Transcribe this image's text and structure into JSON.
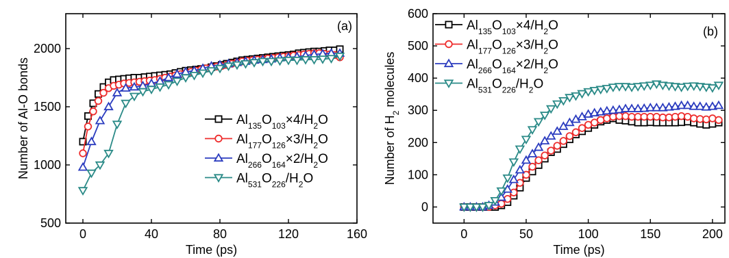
{
  "chart_data": [
    {
      "type": "line",
      "panel_label": "(a)",
      "xlabel": "Time (ps)",
      "ylabel": "Number of Al-O bonds",
      "xlim": [
        -10,
        160
      ],
      "ylim": [
        500,
        2300
      ],
      "xticks": [
        0,
        40,
        80,
        120,
        160
      ],
      "yticks": [
        500,
        1000,
        1500,
        2000
      ],
      "legend_position": "center-right",
      "grid": false,
      "series": [
        {
          "name": "Al135O103×4/H2O",
          "legend": {
            "parts": [
              [
                "Al",
                ""
              ],
              [
                "135",
                "sub"
              ],
              [
                "O",
                ""
              ],
              [
                "103",
                "sub"
              ],
              [
                "×4/H",
                ""
              ],
              [
                "2",
                "sub"
              ],
              [
                "O",
                ""
              ]
            ]
          },
          "color": "#000000",
          "marker": "square",
          "x": [
            0,
            3,
            6,
            9,
            12,
            15,
            18,
            21,
            24,
            27,
            30,
            33,
            36,
            39,
            42,
            45,
            48,
            51,
            54,
            57,
            60,
            63,
            66,
            69,
            72,
            75,
            78,
            81,
            84,
            87,
            90,
            93,
            96,
            99,
            102,
            105,
            108,
            111,
            114,
            117,
            120,
            123,
            126,
            129,
            132,
            135,
            138,
            141,
            144,
            147,
            150
          ],
          "y": [
            1200,
            1420,
            1530,
            1610,
            1670,
            1710,
            1730,
            1735,
            1740,
            1745,
            1750,
            1750,
            1755,
            1760,
            1765,
            1770,
            1775,
            1780,
            1790,
            1800,
            1810,
            1815,
            1820,
            1825,
            1830,
            1840,
            1850,
            1860,
            1870,
            1880,
            1890,
            1900,
            1905,
            1910,
            1915,
            1920,
            1925,
            1930,
            1935,
            1940,
            1945,
            1950,
            1960,
            1965,
            1970,
            1975,
            1975,
            1980,
            1985,
            1985,
            1995
          ]
        },
        {
          "name": "Al177O126×3/H2O",
          "legend": {
            "parts": [
              [
                "Al",
                ""
              ],
              [
                "177",
                "sub"
              ],
              [
                "O",
                ""
              ],
              [
                "126",
                "sub"
              ],
              [
                "×3/H",
                ""
              ],
              [
                "2",
                "sub"
              ],
              [
                "O",
                ""
              ]
            ]
          },
          "color": "#ee2c2c",
          "marker": "circle",
          "x": [
            0,
            3,
            6,
            9,
            12,
            15,
            18,
            21,
            24,
            27,
            30,
            33,
            36,
            39,
            42,
            45,
            48,
            51,
            54,
            57,
            60,
            63,
            66,
            69,
            72,
            75,
            78,
            81,
            84,
            87,
            90,
            93,
            96,
            99,
            102,
            105,
            108,
            111,
            114,
            117,
            120,
            123,
            126,
            129,
            132,
            135,
            138,
            141,
            144,
            147,
            150
          ],
          "y": [
            1100,
            1330,
            1460,
            1550,
            1620,
            1660,
            1680,
            1690,
            1700,
            1705,
            1710,
            1715,
            1720,
            1725,
            1730,
            1740,
            1750,
            1760,
            1770,
            1780,
            1790,
            1800,
            1810,
            1820,
            1830,
            1840,
            1845,
            1850,
            1860,
            1870,
            1880,
            1890,
            1895,
            1900,
            1905,
            1910,
            1915,
            1920,
            1925,
            1930,
            1935,
            1940,
            1945,
            1950,
            1955,
            1960,
            1960,
            1955,
            1950,
            1945,
            1925
          ]
        },
        {
          "name": "Al266O164×2/H2O",
          "legend": {
            "parts": [
              [
                "Al",
                ""
              ],
              [
                "266",
                "sub"
              ],
              [
                "O",
                ""
              ],
              [
                "164",
                "sub"
              ],
              [
                "×2/H",
                ""
              ],
              [
                "2",
                "sub"
              ],
              [
                "O",
                ""
              ]
            ]
          },
          "color": "#2b3cbf",
          "marker": "triangle-up",
          "x": [
            0,
            5,
            10,
            15,
            20,
            25,
            30,
            35,
            40,
            45,
            50,
            55,
            60,
            65,
            70,
            75,
            80,
            85,
            90,
            95,
            100,
            105,
            110,
            115,
            120,
            125,
            130,
            135,
            140,
            145,
            150
          ],
          "y": [
            980,
            1200,
            1380,
            1500,
            1620,
            1660,
            1670,
            1680,
            1700,
            1720,
            1750,
            1780,
            1800,
            1810,
            1830,
            1850,
            1860,
            1870,
            1880,
            1890,
            1900,
            1905,
            1910,
            1920,
            1925,
            1930,
            1940,
            1950,
            1955,
            1960,
            1960
          ]
        },
        {
          "name": "Al531O226/H2O",
          "legend": {
            "parts": [
              [
                "Al",
                ""
              ],
              [
                "531",
                "sub"
              ],
              [
                "O",
                ""
              ],
              [
                "226",
                "sub"
              ],
              [
                "/H",
                ""
              ],
              [
                "2",
                "sub"
              ],
              [
                "O",
                ""
              ]
            ]
          },
          "color": "#2a8a87",
          "marker": "triangle-down",
          "x": [
            0,
            5,
            10,
            15,
            20,
            25,
            30,
            35,
            40,
            45,
            50,
            55,
            60,
            65,
            70,
            75,
            80,
            85,
            90,
            95,
            100,
            105,
            110,
            115,
            120,
            125,
            130,
            135,
            140,
            145,
            150
          ],
          "y": [
            780,
            930,
            1000,
            1100,
            1350,
            1530,
            1590,
            1630,
            1650,
            1670,
            1690,
            1720,
            1750,
            1770,
            1790,
            1810,
            1830,
            1850,
            1860,
            1870,
            1880,
            1890,
            1890,
            1895,
            1900,
            1900,
            1905,
            1905,
            1910,
            1915,
            1935
          ]
        }
      ]
    },
    {
      "type": "line",
      "panel_label": "(b)",
      "xlabel": "Time (ps)",
      "ylabel": {
        "parts": [
          [
            "Number of H",
            ""
          ],
          [
            "2",
            "sub"
          ],
          [
            " molecules",
            ""
          ]
        ]
      },
      "xlim": [
        -25,
        210
      ],
      "ylim": [
        -50,
        600
      ],
      "xticks": [
        0,
        50,
        100,
        150,
        200
      ],
      "yticks": [
        0,
        100,
        200,
        300,
        400,
        500,
        600
      ],
      "legend_position": "top-left",
      "grid": false,
      "series": [
        {
          "name": "Al135O103×4/H2O",
          "legend": {
            "parts": [
              [
                "Al",
                ""
              ],
              [
                "135",
                "sub"
              ],
              [
                "O",
                ""
              ],
              [
                "103",
                "sub"
              ],
              [
                "×4/H",
                ""
              ],
              [
                "2",
                "sub"
              ],
              [
                "O",
                ""
              ]
            ]
          },
          "color": "#000000",
          "marker": "square",
          "x": [
            0,
            5,
            10,
            15,
            20,
            25,
            30,
            35,
            40,
            45,
            50,
            55,
            60,
            65,
            70,
            75,
            80,
            85,
            90,
            95,
            100,
            105,
            110,
            115,
            120,
            125,
            130,
            135,
            140,
            145,
            150,
            155,
            160,
            165,
            170,
            175,
            180,
            185,
            190,
            195,
            200,
            205
          ],
          "y": [
            0,
            0,
            0,
            0,
            0,
            0,
            5,
            15,
            35,
            60,
            90,
            110,
            130,
            150,
            170,
            180,
            195,
            210,
            225,
            235,
            245,
            255,
            265,
            270,
            275,
            270,
            268,
            265,
            262,
            262,
            263,
            262,
            262,
            262,
            262,
            263,
            265,
            262,
            258,
            255,
            258,
            262
          ]
        },
        {
          "name": "Al177O126×3/H2O",
          "legend": {
            "parts": [
              [
                "Al",
                ""
              ],
              [
                "177",
                "sub"
              ],
              [
                "O",
                ""
              ],
              [
                "126",
                "sub"
              ],
              [
                "×3/H",
                ""
              ],
              [
                "2",
                "sub"
              ],
              [
                "O",
                ""
              ]
            ]
          },
          "color": "#ee2c2c",
          "marker": "circle",
          "x": [
            0,
            5,
            10,
            15,
            20,
            25,
            30,
            35,
            40,
            45,
            50,
            55,
            60,
            65,
            70,
            75,
            80,
            85,
            90,
            95,
            100,
            105,
            110,
            115,
            120,
            125,
            130,
            135,
            140,
            145,
            150,
            155,
            160,
            165,
            170,
            175,
            180,
            185,
            190,
            195,
            200,
            205
          ],
          "y": [
            0,
            0,
            0,
            0,
            0,
            5,
            10,
            25,
            45,
            75,
            100,
            125,
            145,
            160,
            175,
            190,
            205,
            220,
            232,
            245,
            255,
            262,
            270,
            275,
            280,
            282,
            282,
            280,
            280,
            280,
            280,
            280,
            278,
            278,
            280,
            282,
            280,
            275,
            273,
            272,
            275,
            270
          ]
        },
        {
          "name": "Al266O164×2/H2O",
          "legend": {
            "parts": [
              [
                "Al",
                ""
              ],
              [
                "266",
                "sub"
              ],
              [
                "O",
                ""
              ],
              [
                "164",
                "sub"
              ],
              [
                "×2/H",
                ""
              ],
              [
                "2",
                "sub"
              ],
              [
                "O",
                ""
              ]
            ]
          },
          "color": "#2b3cbf",
          "marker": "triangle-up",
          "x": [
            0,
            5,
            10,
            15,
            20,
            25,
            30,
            35,
            40,
            45,
            50,
            55,
            60,
            65,
            70,
            75,
            80,
            85,
            90,
            95,
            100,
            105,
            110,
            115,
            120,
            125,
            130,
            135,
            140,
            145,
            150,
            155,
            160,
            165,
            170,
            175,
            180,
            185,
            190,
            195,
            200,
            205
          ],
          "y": [
            0,
            0,
            0,
            0,
            5,
            15,
            30,
            55,
            85,
            115,
            145,
            165,
            185,
            205,
            220,
            235,
            250,
            262,
            272,
            280,
            288,
            292,
            295,
            298,
            300,
            302,
            305,
            305,
            305,
            306,
            308,
            308,
            308,
            310,
            312,
            315,
            315,
            312,
            312,
            310,
            312,
            315
          ]
        },
        {
          "name": "Al531O226/H2O",
          "legend": {
            "parts": [
              [
                "Al",
                ""
              ],
              [
                "531",
                "sub"
              ],
              [
                "O",
                ""
              ],
              [
                "226",
                "sub"
              ],
              [
                "/H",
                ""
              ],
              [
                "2",
                "sub"
              ],
              [
                "O",
                ""
              ]
            ]
          },
          "color": "#2a8a87",
          "marker": "triangle-down",
          "x": [
            0,
            5,
            10,
            15,
            20,
            25,
            30,
            35,
            40,
            45,
            50,
            55,
            60,
            65,
            70,
            75,
            80,
            85,
            90,
            95,
            100,
            105,
            110,
            115,
            120,
            125,
            130,
            135,
            140,
            145,
            150,
            155,
            160,
            165,
            170,
            175,
            180,
            185,
            190,
            195,
            200,
            205
          ],
          "y": [
            0,
            0,
            0,
            0,
            5,
            20,
            50,
            90,
            140,
            180,
            210,
            240,
            265,
            285,
            305,
            320,
            330,
            340,
            345,
            352,
            358,
            362,
            365,
            368,
            372,
            374,
            374,
            372,
            374,
            376,
            378,
            382,
            378,
            376,
            374,
            372,
            375,
            376,
            374,
            372,
            370,
            378
          ]
        }
      ]
    }
  ]
}
